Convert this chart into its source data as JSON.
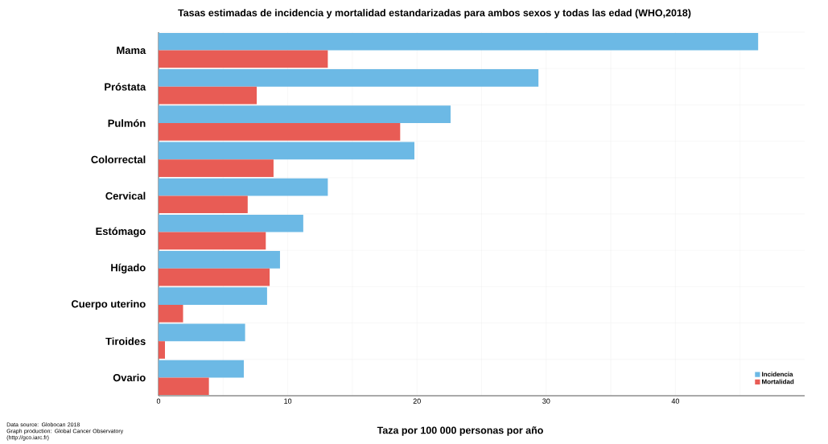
{
  "chart_data": {
    "type": "bar",
    "orientation": "horizontal",
    "title": "Tasas estimadas de incidencia y mortalidad estandarizadas para ambos sexos y todas las edad (WHO,2018)",
    "xlabel": "Taza por 100 000 personas por año",
    "categories": [
      "Mama",
      "Próstata",
      "Pulmón",
      "Colorrectal",
      "Cervical",
      "Estómago",
      "Hígado",
      "Cuerpo uterino",
      "Tiroides",
      "Ovario"
    ],
    "series": [
      {
        "name": "Incidencia",
        "color": "#6cb9e5",
        "values": [
          46.4,
          29.4,
          22.6,
          19.8,
          13.1,
          11.2,
          9.4,
          8.4,
          6.7,
          6.6
        ]
      },
      {
        "name": "Mortalidad",
        "color": "#e85c55",
        "values": [
          13.1,
          7.6,
          18.7,
          8.9,
          6.9,
          8.3,
          8.6,
          1.9,
          0.5,
          3.9
        ]
      }
    ],
    "xlim": [
      0,
      50
    ],
    "xticks": [
      0,
      {
        "value": 5,
        "label": null
      },
      10,
      {
        "value": 15,
        "label": null
      },
      20,
      {
        "value": 25,
        "label": null
      },
      30,
      {
        "value": 35,
        "label": null
      },
      40,
      {
        "value": 45,
        "label": null
      }
    ],
    "grid": true,
    "legend": "bottom right",
    "annotations": [
      "Data source: Globocan 2018",
      "Graph production: Global Cancer Observatory (http://gco.iarc.fr)"
    ]
  }
}
